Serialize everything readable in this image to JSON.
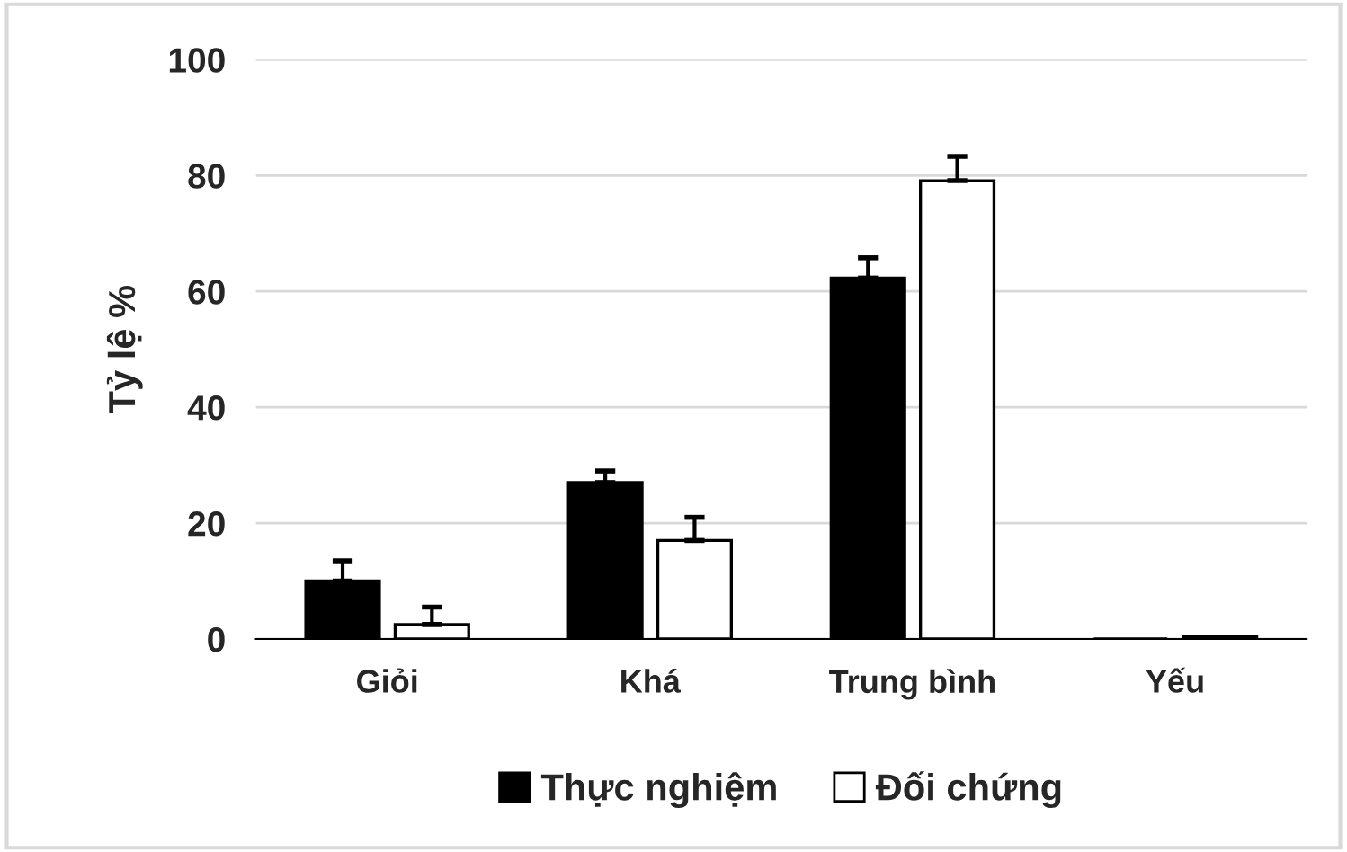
{
  "chart_data": {
    "type": "bar",
    "ylabel": "Tỷ lệ %",
    "categories": [
      "Giỏi",
      "Khá",
      "Trung bình",
      "Yếu"
    ],
    "series": [
      {
        "name": "Thực nghiệm",
        "color": "#000000",
        "values": [
          10,
          27,
          62.3,
          0
        ],
        "errors": [
          [
            10,
            13.5
          ],
          [
            27,
            29
          ],
          [
            62.3,
            65.8
          ],
          null
        ]
      },
      {
        "name": "Đối chứng",
        "color": "#ffffff",
        "values": [
          2.5,
          17,
          79.1,
          0.5
        ],
        "errors": [
          [
            2.5,
            5.5
          ],
          [
            17,
            21
          ],
          [
            79.1,
            83.3
          ],
          null
        ]
      }
    ],
    "ylim": [
      0,
      100
    ],
    "yticks": [
      0,
      20,
      40,
      60,
      80,
      100
    ],
    "grid": "y",
    "legend": "bottom"
  }
}
